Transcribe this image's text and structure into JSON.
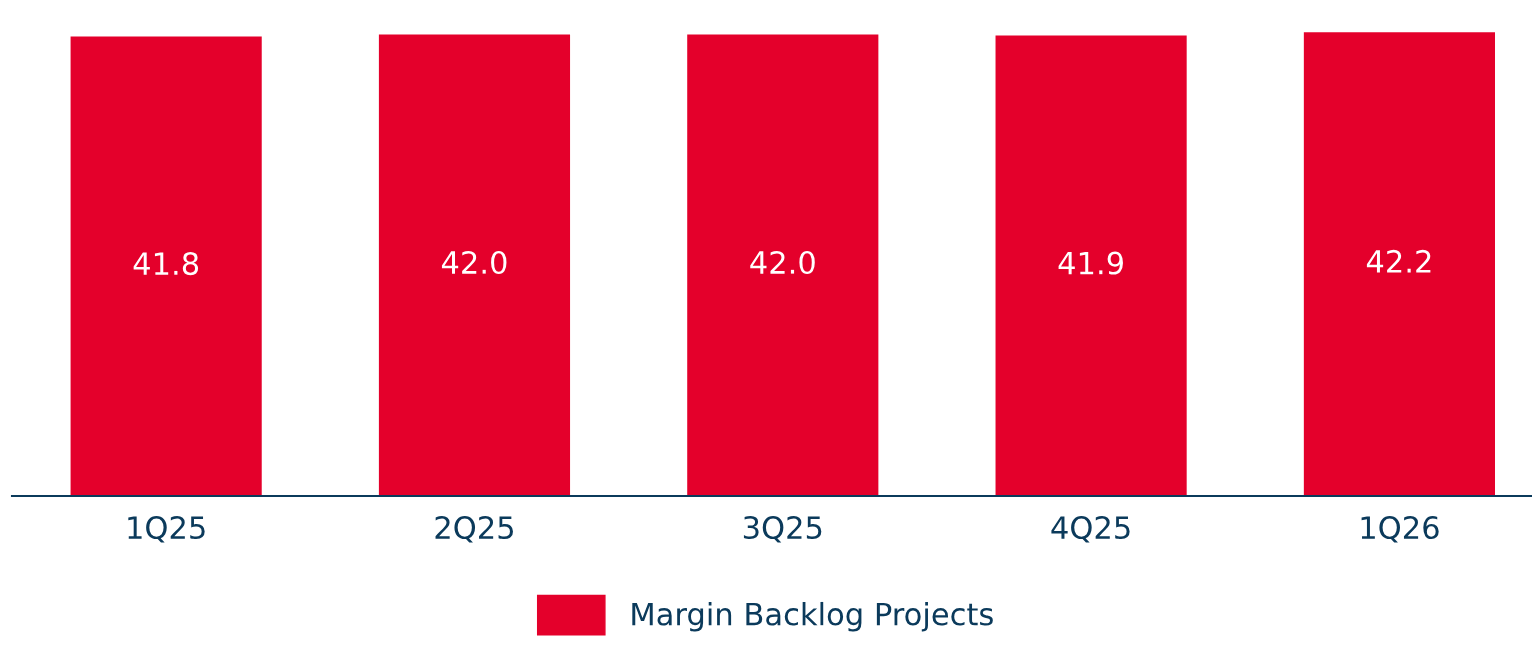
{
  "chart_data": {
    "type": "bar",
    "categories": [
      "1Q25",
      "2Q25",
      "3Q25",
      "4Q25",
      "1Q26"
    ],
    "series": [
      {
        "name": "Margin Backlog Projects",
        "color": "#e4002b",
        "values": [
          41.8,
          42.0,
          42.0,
          41.9,
          42.2
        ],
        "value_labels": [
          "41.8",
          "42.0",
          "42.0",
          "41.9",
          "42.2"
        ]
      }
    ],
    "tick_labels": "x",
    "grid": false,
    "legend": "bottom"
  }
}
